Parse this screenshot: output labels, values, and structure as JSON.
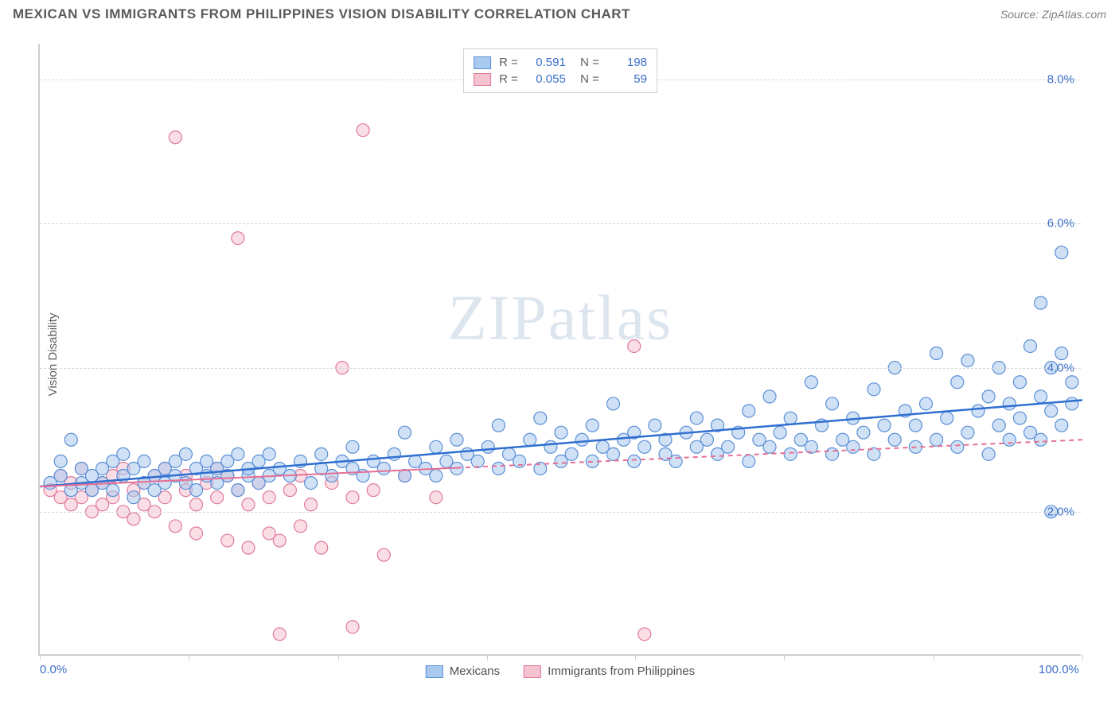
{
  "title": "MEXICAN VS IMMIGRANTS FROM PHILIPPINES VISION DISABILITY CORRELATION CHART",
  "source": "Source: ZipAtlas.com",
  "watermark": "ZIPatlas",
  "ylabel": "Vision Disability",
  "chart": {
    "type": "scatter",
    "xlim": [
      0,
      100
    ],
    "ylim": [
      0,
      8.5
    ],
    "x_ticks": [
      0,
      14.3,
      28.6,
      42.9,
      57.1,
      71.4,
      85.7,
      100
    ],
    "x_tick_labels": {
      "0": "0.0%",
      "100": "100.0%"
    },
    "y_gridlines": [
      2.0,
      4.0,
      6.0,
      8.0
    ],
    "y_tick_labels": [
      "2.0%",
      "4.0%",
      "6.0%",
      "8.0%"
    ],
    "background_color": "#ffffff",
    "grid_color": "#d8d8d8",
    "axis_color": "#cfcfcf",
    "label_color": "#3b6fc9",
    "marker_radius": 8,
    "marker_opacity": 0.55,
    "series": [
      {
        "name": "Mexicans",
        "color_fill": "#a9c9ef",
        "color_stroke": "#5a8fd6",
        "r": "0.591",
        "n": "198",
        "trend": {
          "x1": 0,
          "y1": 2.35,
          "x2": 100,
          "y2": 3.55,
          "stroke": "#2f6fd0",
          "width": 2.5,
          "dash_after_x": null
        },
        "points": [
          [
            1,
            2.4
          ],
          [
            2,
            2.5
          ],
          [
            2,
            2.7
          ],
          [
            3,
            2.3
          ],
          [
            3,
            3.0
          ],
          [
            4,
            2.4
          ],
          [
            4,
            2.6
          ],
          [
            5,
            2.3
          ],
          [
            5,
            2.5
          ],
          [
            6,
            2.4
          ],
          [
            6,
            2.6
          ],
          [
            7,
            2.3
          ],
          [
            7,
            2.7
          ],
          [
            8,
            2.5
          ],
          [
            8,
            2.8
          ],
          [
            9,
            2.2
          ],
          [
            9,
            2.6
          ],
          [
            10,
            2.4
          ],
          [
            10,
            2.7
          ],
          [
            11,
            2.3
          ],
          [
            11,
            2.5
          ],
          [
            12,
            2.6
          ],
          [
            12,
            2.4
          ],
          [
            13,
            2.5
          ],
          [
            13,
            2.7
          ],
          [
            14,
            2.4
          ],
          [
            14,
            2.8
          ],
          [
            15,
            2.3
          ],
          [
            15,
            2.6
          ],
          [
            16,
            2.5
          ],
          [
            16,
            2.7
          ],
          [
            17,
            2.4
          ],
          [
            17,
            2.6
          ],
          [
            18,
            2.7
          ],
          [
            18,
            2.5
          ],
          [
            19,
            2.3
          ],
          [
            19,
            2.8
          ],
          [
            20,
            2.5
          ],
          [
            20,
            2.6
          ],
          [
            21,
            2.4
          ],
          [
            21,
            2.7
          ],
          [
            22,
            2.5
          ],
          [
            22,
            2.8
          ],
          [
            23,
            2.6
          ],
          [
            24,
            2.5
          ],
          [
            25,
            2.7
          ],
          [
            26,
            2.4
          ],
          [
            27,
            2.6
          ],
          [
            27,
            2.8
          ],
          [
            28,
            2.5
          ],
          [
            29,
            2.7
          ],
          [
            30,
            2.6
          ],
          [
            30,
            2.9
          ],
          [
            31,
            2.5
          ],
          [
            32,
            2.7
          ],
          [
            33,
            2.6
          ],
          [
            34,
            2.8
          ],
          [
            35,
            2.5
          ],
          [
            35,
            3.1
          ],
          [
            36,
            2.7
          ],
          [
            37,
            2.6
          ],
          [
            38,
            2.9
          ],
          [
            38,
            2.5
          ],
          [
            39,
            2.7
          ],
          [
            40,
            2.6
          ],
          [
            40,
            3.0
          ],
          [
            41,
            2.8
          ],
          [
            42,
            2.7
          ],
          [
            43,
            2.9
          ],
          [
            44,
            2.6
          ],
          [
            44,
            3.2
          ],
          [
            45,
            2.8
          ],
          [
            46,
            2.7
          ],
          [
            47,
            3.0
          ],
          [
            48,
            2.6
          ],
          [
            48,
            3.3
          ],
          [
            49,
            2.9
          ],
          [
            50,
            2.7
          ],
          [
            50,
            3.1
          ],
          [
            51,
            2.8
          ],
          [
            52,
            3.0
          ],
          [
            53,
            2.7
          ],
          [
            53,
            3.2
          ],
          [
            54,
            2.9
          ],
          [
            55,
            2.8
          ],
          [
            55,
            3.5
          ],
          [
            56,
            3.0
          ],
          [
            57,
            2.7
          ],
          [
            57,
            3.1
          ],
          [
            58,
            2.9
          ],
          [
            59,
            3.2
          ],
          [
            60,
            2.8
          ],
          [
            60,
            3.0
          ],
          [
            61,
            2.7
          ],
          [
            62,
            3.1
          ],
          [
            63,
            2.9
          ],
          [
            63,
            3.3
          ],
          [
            64,
            3.0
          ],
          [
            65,
            2.8
          ],
          [
            65,
            3.2
          ],
          [
            66,
            2.9
          ],
          [
            67,
            3.1
          ],
          [
            68,
            2.7
          ],
          [
            68,
            3.4
          ],
          [
            69,
            3.0
          ],
          [
            70,
            2.9
          ],
          [
            70,
            3.6
          ],
          [
            71,
            3.1
          ],
          [
            72,
            2.8
          ],
          [
            72,
            3.3
          ],
          [
            73,
            3.0
          ],
          [
            74,
            2.9
          ],
          [
            74,
            3.8
          ],
          [
            75,
            3.2
          ],
          [
            76,
            2.8
          ],
          [
            76,
            3.5
          ],
          [
            77,
            3.0
          ],
          [
            78,
            3.3
          ],
          [
            78,
            2.9
          ],
          [
            79,
            3.1
          ],
          [
            80,
            2.8
          ],
          [
            80,
            3.7
          ],
          [
            81,
            3.2
          ],
          [
            82,
            3.0
          ],
          [
            82,
            4.0
          ],
          [
            83,
            3.4
          ],
          [
            84,
            2.9
          ],
          [
            84,
            3.2
          ],
          [
            85,
            3.5
          ],
          [
            86,
            3.0
          ],
          [
            86,
            4.2
          ],
          [
            87,
            3.3
          ],
          [
            88,
            2.9
          ],
          [
            88,
            3.8
          ],
          [
            89,
            3.1
          ],
          [
            89,
            4.1
          ],
          [
            90,
            3.4
          ],
          [
            91,
            2.8
          ],
          [
            91,
            3.6
          ],
          [
            92,
            3.2
          ],
          [
            92,
            4.0
          ],
          [
            93,
            3.5
          ],
          [
            93,
            3.0
          ],
          [
            94,
            3.8
          ],
          [
            94,
            3.3
          ],
          [
            95,
            3.1
          ],
          [
            95,
            4.3
          ],
          [
            96,
            3.6
          ],
          [
            96,
            3.0
          ],
          [
            96,
            4.9
          ],
          [
            97,
            3.4
          ],
          [
            97,
            4.0
          ],
          [
            97,
            2.0
          ],
          [
            98,
            3.2
          ],
          [
            98,
            4.2
          ],
          [
            98,
            5.6
          ],
          [
            99,
            3.5
          ],
          [
            99,
            3.8
          ]
        ]
      },
      {
        "name": "Immigrants from Philippines",
        "color_fill": "#f5c2cf",
        "color_stroke": "#e07a9a",
        "r": "0.055",
        "n": "59",
        "trend": {
          "x1": 0,
          "y1": 2.35,
          "x2": 100,
          "y2": 3.0,
          "stroke": "#e66f95",
          "width": 2,
          "dash_after_x": 40
        },
        "points": [
          [
            1,
            2.3
          ],
          [
            2,
            2.2
          ],
          [
            2,
            2.5
          ],
          [
            3,
            2.1
          ],
          [
            3,
            2.4
          ],
          [
            4,
            2.2
          ],
          [
            4,
            2.6
          ],
          [
            5,
            2.0
          ],
          [
            5,
            2.3
          ],
          [
            6,
            2.4
          ],
          [
            6,
            2.1
          ],
          [
            7,
            2.5
          ],
          [
            7,
            2.2
          ],
          [
            8,
            2.0
          ],
          [
            8,
            2.6
          ],
          [
            9,
            2.3
          ],
          [
            9,
            1.9
          ],
          [
            10,
            2.4
          ],
          [
            10,
            2.1
          ],
          [
            11,
            2.5
          ],
          [
            11,
            2.0
          ],
          [
            12,
            2.2
          ],
          [
            12,
            2.6
          ],
          [
            13,
            1.8
          ],
          [
            13,
            7.2
          ],
          [
            14,
            2.3
          ],
          [
            14,
            2.5
          ],
          [
            15,
            2.1
          ],
          [
            15,
            1.7
          ],
          [
            16,
            2.4
          ],
          [
            17,
            2.2
          ],
          [
            17,
            2.6
          ],
          [
            18,
            1.6
          ],
          [
            18,
            2.5
          ],
          [
            19,
            2.3
          ],
          [
            19,
            5.8
          ],
          [
            20,
            2.1
          ],
          [
            20,
            1.5
          ],
          [
            21,
            2.4
          ],
          [
            22,
            1.7
          ],
          [
            22,
            2.2
          ],
          [
            23,
            1.6
          ],
          [
            23,
            0.3
          ],
          [
            24,
            2.3
          ],
          [
            25,
            2.5
          ],
          [
            25,
            1.8
          ],
          [
            26,
            2.1
          ],
          [
            27,
            1.5
          ],
          [
            28,
            2.4
          ],
          [
            29,
            4.0
          ],
          [
            30,
            2.2
          ],
          [
            30,
            0.4
          ],
          [
            31,
            7.3
          ],
          [
            32,
            2.3
          ],
          [
            33,
            1.4
          ],
          [
            35,
            2.5
          ],
          [
            38,
            2.2
          ],
          [
            57,
            4.3
          ],
          [
            58,
            0.3
          ]
        ]
      }
    ]
  },
  "legend_bottom": [
    {
      "label": "Mexicans",
      "fill": "#a9c9ef",
      "stroke": "#5a8fd6"
    },
    {
      "label": "Immigrants from Philippines",
      "fill": "#f5c2cf",
      "stroke": "#e07a9a"
    }
  ]
}
